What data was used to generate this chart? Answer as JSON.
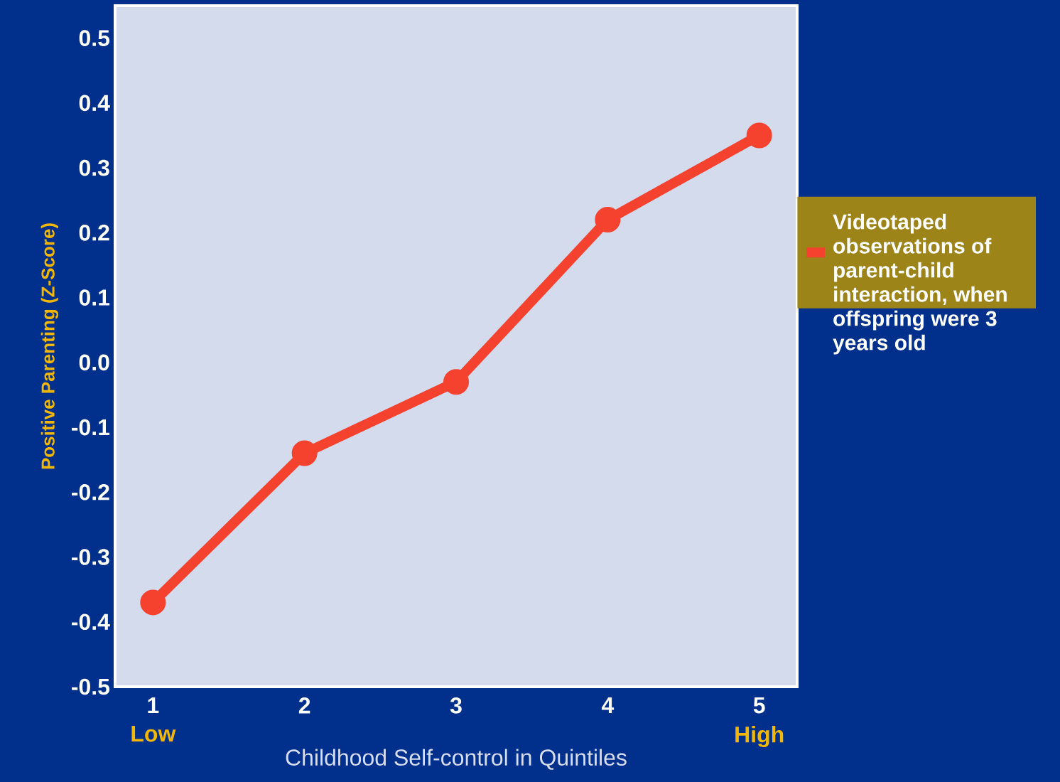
{
  "chart_data": {
    "type": "line",
    "xlabel": "Childhood Self-control in Quintiles",
    "ylabel": "Positive Parenting (Z-Score)",
    "x": [
      1,
      2,
      3,
      4,
      5
    ],
    "series": [
      {
        "name": "Videotaped observations of parent-child interaction, when offspring were 3 years old",
        "color": "#f5422f",
        "values": [
          -0.37,
          -0.14,
          -0.03,
          0.22,
          0.35
        ]
      }
    ],
    "xlim": [
      0.75,
      5.25
    ],
    "xticks": [
      1,
      2,
      3,
      4,
      5
    ],
    "ylim": [
      -0.5,
      0.55
    ],
    "yticks": [
      -0.5,
      -0.4,
      -0.3,
      -0.2,
      -0.1,
      {
        "value": 0,
        "label": "0.0"
      },
      0.1,
      0.2,
      0.3,
      0.4,
      0.5
    ],
    "annotations": [
      "Low",
      "High"
    ],
    "legend": "right",
    "marker": "circle",
    "line_style": "solid",
    "grid": false
  }
}
